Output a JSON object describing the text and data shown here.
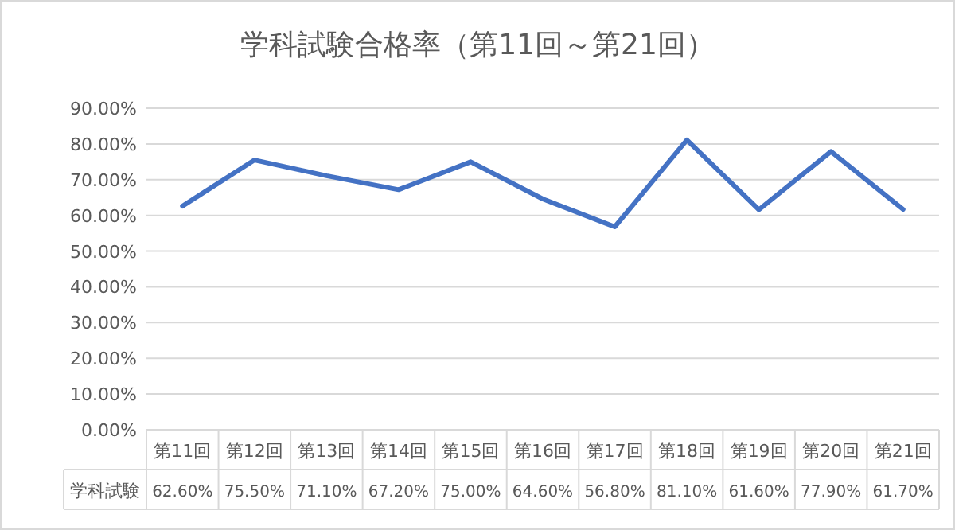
{
  "chart_data": {
    "type": "line",
    "title": "学科試験合格率（第11回～第21回）",
    "categories": [
      "第11回",
      "第12回",
      "第13回",
      "第14回",
      "第15回",
      "第16回",
      "第17回",
      "第18回",
      "第19回",
      "第20回",
      "第21回"
    ],
    "series": [
      {
        "name": "学科試験",
        "color": "#4472c4",
        "values": [
          62.6,
          75.5,
          71.1,
          67.2,
          75.0,
          64.6,
          56.8,
          81.1,
          61.6,
          77.9,
          61.7
        ],
        "value_labels": [
          "62.60%",
          "75.50%",
          "71.10%",
          "67.20%",
          "75.00%",
          "64.60%",
          "56.80%",
          "81.10%",
          "61.60%",
          "77.90%",
          "61.70%"
        ]
      }
    ],
    "ylim": [
      0,
      90
    ],
    "yticks": [
      {
        "value": 0,
        "label": "0.00%"
      },
      {
        "value": 10,
        "label": "10.00%"
      },
      {
        "value": 20,
        "label": "20.00%"
      },
      {
        "value": 30,
        "label": "30.00%"
      },
      {
        "value": 40,
        "label": "40.00%"
      },
      {
        "value": 50,
        "label": "50.00%"
      },
      {
        "value": 60,
        "label": "60.00%"
      },
      {
        "value": 70,
        "label": "70.00%"
      },
      {
        "value": 80,
        "label": "80.00%"
      },
      {
        "value": 90,
        "label": "90.00%"
      }
    ],
    "grid": "y",
    "marker": "none",
    "line_style": "solid"
  }
}
